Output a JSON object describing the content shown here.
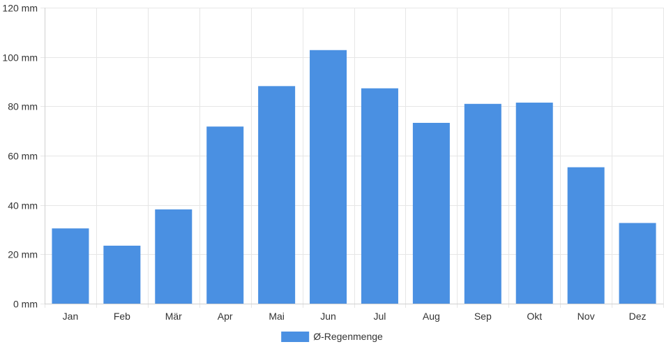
{
  "chart_data": {
    "type": "bar",
    "title": "",
    "xlabel": "",
    "ylabel": "",
    "categories": [
      "Jan",
      "Feb",
      "Mär",
      "Apr",
      "Mai",
      "Jun",
      "Jul",
      "Aug",
      "Sep",
      "Okt",
      "Nov",
      "Dez"
    ],
    "series": [
      {
        "name": "Ø-Regenmenge",
        "values": [
          30.5,
          23.5,
          38.2,
          71.8,
          88.2,
          102.8,
          87.3,
          73.3,
          81.0,
          81.5,
          55.3,
          32.7
        ],
        "color": "#4a90e2"
      }
    ],
    "ylim": [
      0,
      120
    ],
    "y_ticks": [
      0,
      20,
      40,
      60,
      80,
      100,
      120
    ],
    "y_unit": "mm",
    "grid": true,
    "legend_position": "bottom-center"
  }
}
